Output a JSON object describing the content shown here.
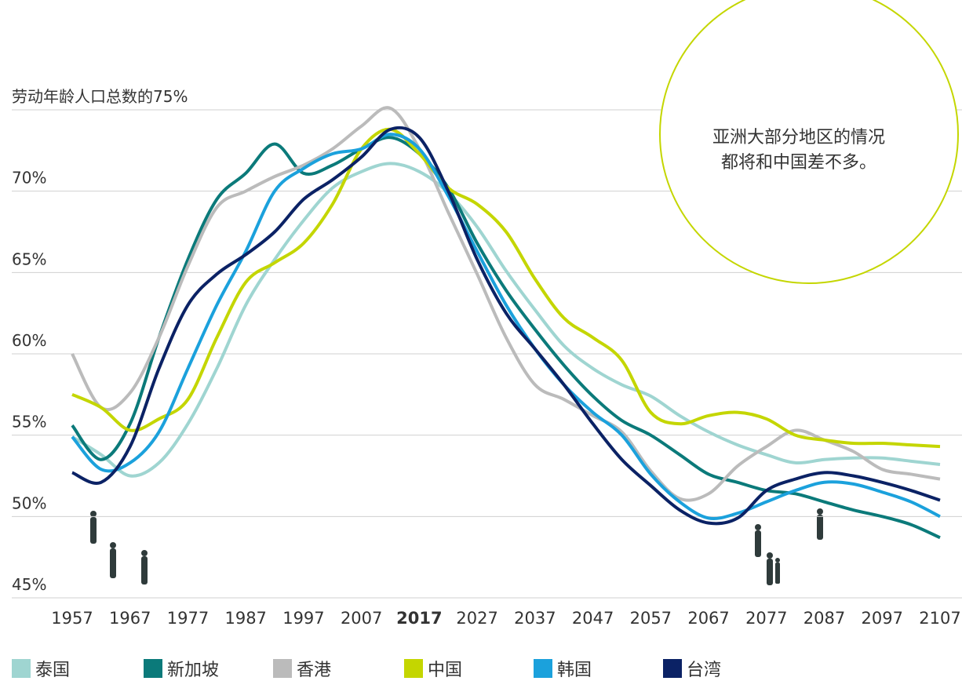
{
  "chart_data": {
    "type": "line",
    "annotation": [
      "亚洲大部分地区的情况",
      "都将和中国差不多。"
    ],
    "x": [
      1957,
      1962,
      1967,
      1972,
      1977,
      1982,
      1987,
      1992,
      1997,
      2002,
      2007,
      2012,
      2017,
      2022,
      2027,
      2032,
      2037,
      2042,
      2047,
      2052,
      2057,
      2062,
      2067,
      2072,
      2077,
      2082,
      2087,
      2092,
      2097,
      2102,
      2107
    ],
    "xlim": [
      1957,
      2107
    ],
    "xticks": [
      1957,
      1967,
      1977,
      1987,
      1997,
      2007,
      2017,
      2027,
      2037,
      2047,
      2057,
      2067,
      2077,
      2087,
      2097,
      2107
    ],
    "bold_xtick_index": 6,
    "ylim": [
      45,
      75
    ],
    "yticks": [
      {
        "value": 45,
        "label": "45%"
      },
      {
        "value": 50,
        "label": "50%"
      },
      {
        "value": 55,
        "label": "55%"
      },
      {
        "value": 60,
        "label": "60%"
      },
      {
        "value": 65,
        "label": "65%"
      },
      {
        "value": 70,
        "label": "70%"
      },
      {
        "value": 75,
        "label": "劳动年龄人口总数的75%"
      }
    ],
    "grid": true,
    "series": [
      {
        "name": "泰国",
        "color": "#9fd5d1",
        "values": [
          54.9,
          53.8,
          52.5,
          53.3,
          55.7,
          59.1,
          63,
          65.8,
          68.2,
          70.2,
          71.2,
          71.7,
          71.2,
          69.9,
          67.8,
          65.1,
          62.7,
          60.5,
          59.1,
          58.1,
          57.4,
          56.2,
          55.2,
          54.4,
          53.8,
          53.3,
          53.5,
          53.6,
          53.6,
          53.4,
          53.2
        ]
      },
      {
        "name": "新加坡",
        "color": "#0b7a7a",
        "values": [
          55.6,
          53.5,
          55.7,
          61,
          65.8,
          69.5,
          71.1,
          72.9,
          71.1,
          71.6,
          72.6,
          73.3,
          72.3,
          70.2,
          66.8,
          63.9,
          61.5,
          59.3,
          57.4,
          55.9,
          55,
          53.8,
          52.6,
          52.1,
          51.6,
          51.4,
          50.9,
          50.4,
          50,
          49.5,
          48.7
        ]
      },
      {
        "name": "香港",
        "color": "#bbbbbb",
        "values": [
          60,
          56.7,
          57.6,
          61,
          65.4,
          69,
          70,
          70.9,
          71.6,
          72.6,
          74,
          75.1,
          72.6,
          68.7,
          64.9,
          61,
          58.1,
          57.2,
          56.2,
          55.2,
          52.8,
          51.1,
          51.4,
          53.1,
          54.3,
          55.3,
          54.7,
          54,
          52.9,
          52.6,
          52.3
        ]
      },
      {
        "name": "中国",
        "color": "#c4d600",
        "values": [
          57.5,
          56.7,
          55.3,
          56,
          57.2,
          61,
          64.4,
          65.6,
          66.8,
          69.2,
          72.6,
          73.8,
          72.3,
          70.2,
          69.2,
          67.5,
          64.6,
          62.2,
          61,
          59.6,
          56.4,
          55.7,
          56.2,
          56.4,
          56,
          55,
          54.7,
          54.5,
          54.5,
          54.4,
          54.3
        ]
      },
      {
        "name": "韩国",
        "color": "#1ba1dc",
        "values": [
          54.9,
          52.9,
          53.3,
          55.2,
          59.1,
          63,
          66.3,
          70,
          71.4,
          72.3,
          72.6,
          73.5,
          72.6,
          69.7,
          66.3,
          63,
          60.3,
          58.1,
          56.4,
          55,
          52.6,
          50.9,
          49.9,
          50.2,
          50.9,
          51.6,
          52.1,
          52,
          51.5,
          50.9,
          50
        ]
      },
      {
        "name": "台湾",
        "color": "#0b2265",
        "values": [
          52.7,
          52.1,
          54.3,
          59.1,
          63,
          64.9,
          66.1,
          67.5,
          69.5,
          70.7,
          72.1,
          73.8,
          73.3,
          70,
          65.8,
          62.5,
          60.3,
          58.1,
          55.7,
          53.5,
          51.9,
          50.4,
          49.6,
          49.9,
          51.6,
          52.3,
          52.7,
          52.5,
          52.1,
          51.6,
          51
        ]
      }
    ]
  }
}
